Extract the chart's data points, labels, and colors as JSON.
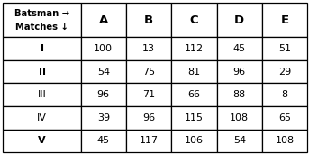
{
  "header_row1": "Batsman →",
  "header_row2": "Matches ↓",
  "columns": [
    "A",
    "B",
    "C",
    "D",
    "E"
  ],
  "rows": [
    "I",
    "II",
    "III",
    "IV",
    "V"
  ],
  "data": [
    [
      100,
      13,
      112,
      45,
      51
    ],
    [
      54,
      75,
      81,
      96,
      29
    ],
    [
      96,
      71,
      66,
      88,
      8
    ],
    [
      39,
      96,
      115,
      108,
      65
    ],
    [
      45,
      117,
      106,
      54,
      108
    ]
  ],
  "bg_color": "#ffffff",
  "border_color": "#000000",
  "text_color": "#000000",
  "header_fontsize": 7.2,
  "data_fontsize": 8.0,
  "col_header_fontsize": 9.5
}
